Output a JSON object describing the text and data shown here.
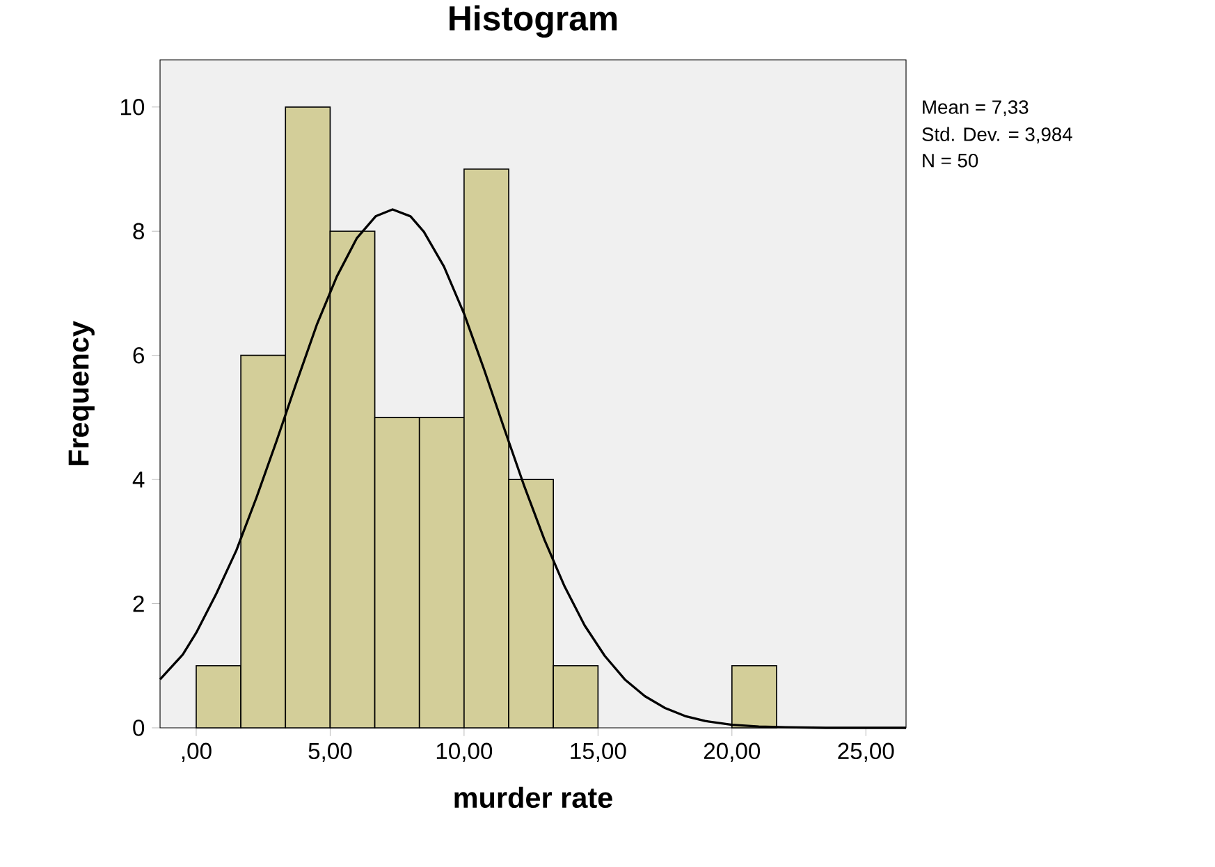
{
  "chart_data": {
    "type": "histogram",
    "title": "Histogram",
    "xlabel": "murder rate",
    "ylabel": "Frequency",
    "bins": [
      0,
      1.667,
      3.333,
      5,
      6.667,
      8.333,
      10,
      11.667,
      13.333,
      15,
      16.667,
      18.333,
      20,
      21.667
    ],
    "values": [
      1,
      6,
      10,
      8,
      5,
      5,
      9,
      4,
      1,
      0,
      0,
      0,
      1
    ],
    "color": "#d3ce99",
    "series": [
      {
        "type": "line",
        "color": "#000000",
        "x": [
          -1.35,
          -0.5,
          0,
          0.75,
          1.5,
          2.25,
          3,
          3.75,
          4.5,
          5.25,
          6,
          6.7,
          7.33,
          8,
          8.5,
          9.25,
          10,
          10.75,
          11.5,
          12.25,
          13,
          13.75,
          14.5,
          15.25,
          16,
          16.75,
          17.5,
          18.25,
          19,
          20,
          21,
          22,
          23.5,
          25,
          26.5
        ],
        "values": [
          0.78,
          1.18,
          1.53,
          2.16,
          2.86,
          3.71,
          4.62,
          5.57,
          6.49,
          7.27,
          7.89,
          8.24,
          8.35,
          8.24,
          7.99,
          7.43,
          6.67,
          5.77,
          4.82,
          3.89,
          3.03,
          2.28,
          1.65,
          1.16,
          0.78,
          0.51,
          0.32,
          0.19,
          0.11,
          0.05,
          0.02,
          0.01,
          0,
          0,
          0
        ]
      }
    ],
    "xlim": [
      -1.35,
      26.5
    ],
    "ylim": [
      0,
      10.76
    ],
    "xticks": [
      {
        "value": 0,
        "label": ",00"
      },
      {
        "value": 5,
        "label": "5,00"
      },
      {
        "value": 10,
        "label": "10,00"
      },
      {
        "value": 15,
        "label": "15,00"
      },
      {
        "value": 20,
        "label": "20,00"
      },
      {
        "value": 25,
        "label": "25,00"
      }
    ],
    "yticks": [
      0,
      2,
      4,
      6,
      8,
      10
    ],
    "grid": false,
    "marker": "none",
    "line_style": "solid",
    "annotations": [
      "Mean = 7,33",
      "Std. Dev. = 3,984",
      "N = 50"
    ]
  }
}
